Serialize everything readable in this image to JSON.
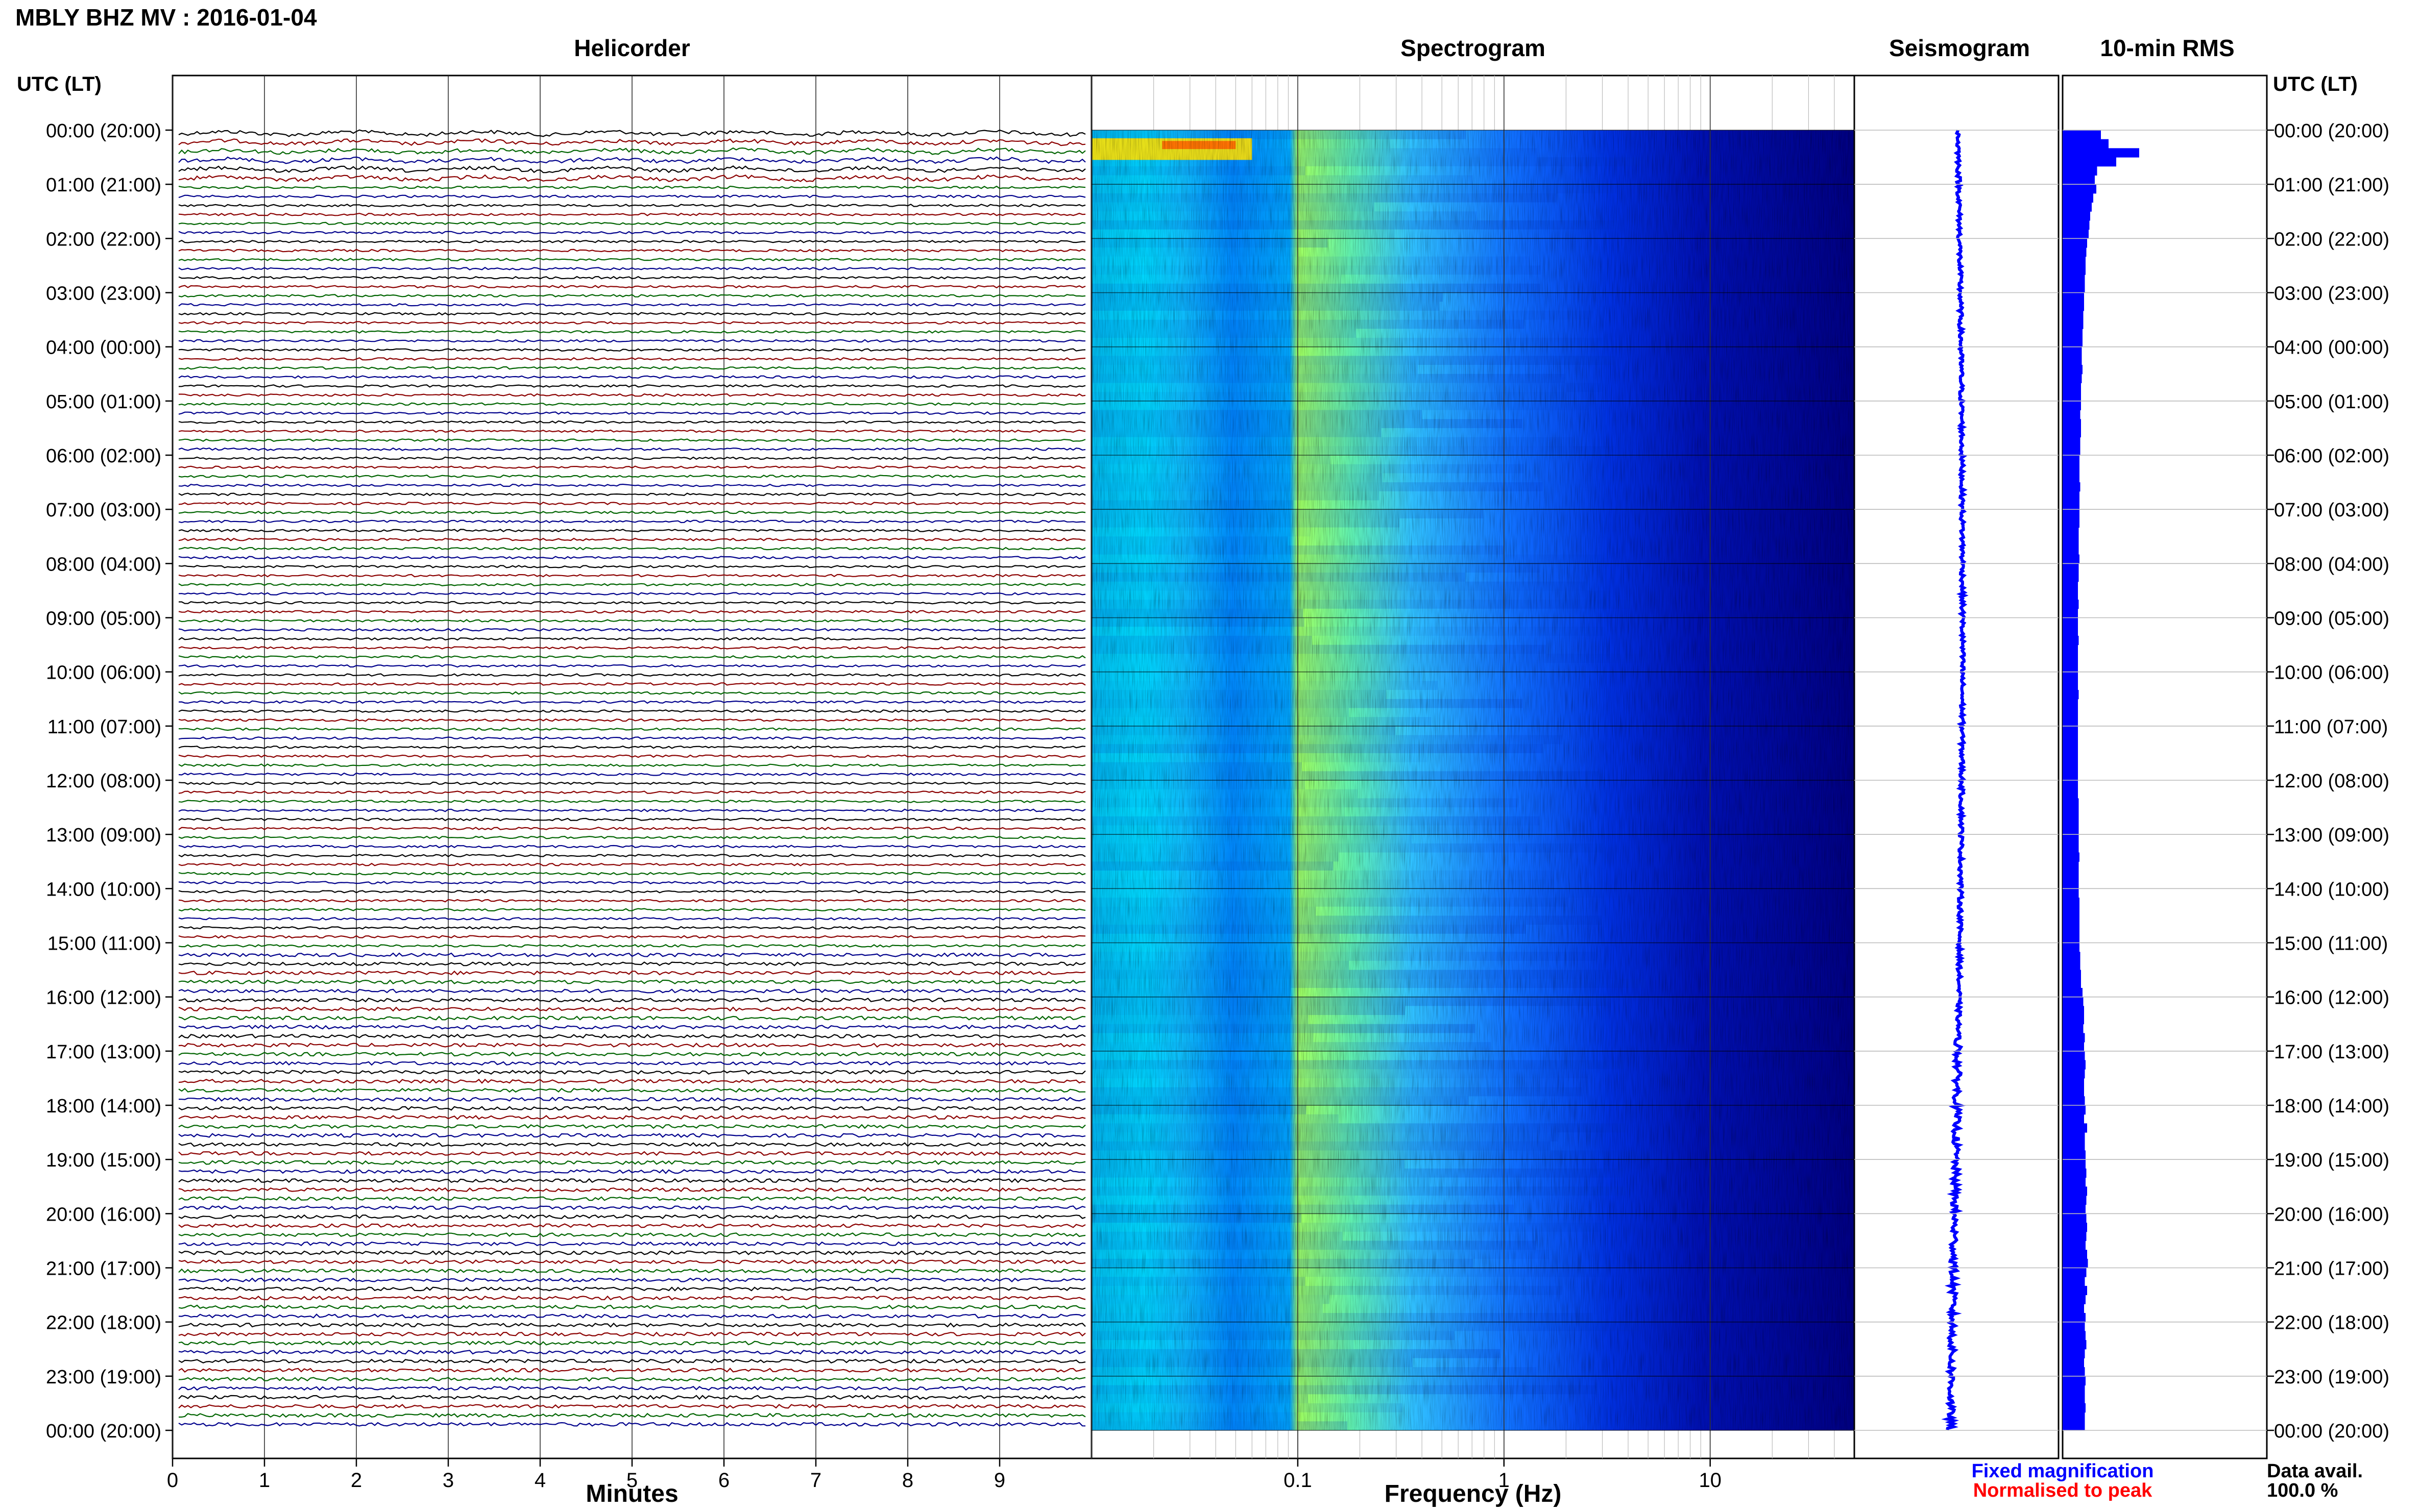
{
  "header": {
    "station_title": "MBLY BHZ MV : 2016-01-04",
    "tz_label_left": "UTC (LT)",
    "tz_label_right": "UTC (LT)"
  },
  "panels": {
    "helicorder_title": "Helicorder",
    "spectrogram_title": "Spectrogram",
    "seismogram_title": "Seismogram",
    "rms_title": "10-min RMS"
  },
  "time_labels": [
    "00:00 (20:00)",
    "01:00 (21:00)",
    "02:00 (22:00)",
    "03:00 (23:00)",
    "04:00 (00:00)",
    "05:00 (01:00)",
    "06:00 (02:00)",
    "07:00 (03:00)",
    "08:00 (04:00)",
    "09:00 (05:00)",
    "10:00 (06:00)",
    "11:00 (07:00)",
    "12:00 (08:00)",
    "13:00 (09:00)",
    "14:00 (10:00)",
    "15:00 (11:00)",
    "16:00 (12:00)",
    "17:00 (13:00)",
    "18:00 (14:00)",
    "19:00 (15:00)",
    "20:00 (16:00)",
    "21:00 (17:00)",
    "22:00 (18:00)",
    "23:00 (19:00)",
    "00:00 (20:00)"
  ],
  "legend": {
    "fixed_magnification": "Fixed magnification",
    "normalised_to_peak": "Normalised to peak",
    "fixed_color": "#0000ff",
    "normalised_color": "#ff0000"
  },
  "data_availability": {
    "label": "Data avail.",
    "value": "100.0 %"
  },
  "colors": {
    "trace_cycle": [
      "#000000",
      "#8b0000",
      "#006400",
      "#00008b"
    ],
    "seismogram": "#0000ff",
    "rms_bar": "#0000ff",
    "colormap": [
      "#00007f",
      "#0000ff",
      "#0080ff",
      "#00ffff",
      "#80ff80",
      "#ffff00",
      "#ff8000",
      "#ff0000"
    ]
  },
  "chart_data": [
    {
      "type": "line",
      "panel": "Helicorder",
      "xlabel": "Minutes",
      "x_ticks": [
        0,
        1,
        2,
        3,
        4,
        5,
        6,
        7,
        8,
        9
      ],
      "xlim": [
        0,
        10
      ],
      "ylim_hours_utc": [
        0,
        24
      ],
      "traces_per_hour": 6,
      "trace_count": 144
    },
    {
      "type": "heatmap",
      "panel": "Spectrogram",
      "xlabel": "Frequency (Hz)",
      "x_scale": "log",
      "x_ticks": [
        0.1,
        1,
        10
      ],
      "x_tick_labels": [
        "0.1",
        "1",
        "10"
      ],
      "xlim": [
        0.01,
        50
      ],
      "ylim_hours_utc": [
        0,
        24
      ]
    },
    {
      "type": "line",
      "panel": "Seismogram",
      "ylim_hours_utc": [
        0,
        24
      ]
    },
    {
      "type": "bar",
      "panel": "10-min RMS",
      "orientation": "horizontal",
      "ylim_hours_utc": [
        0,
        24
      ],
      "bins_per_hour": 6,
      "relative_values": [
        0.5,
        0.6,
        1.0,
        0.7,
        0.45,
        0.42,
        0.44,
        0.4,
        0.38,
        0.36,
        0.35,
        0.34,
        0.32,
        0.31,
        0.3,
        0.3,
        0.29,
        0.29,
        0.28,
        0.28,
        0.27,
        0.27,
        0.26,
        0.26,
        0.25,
        0.25,
        0.26,
        0.25,
        0.24,
        0.24,
        0.24,
        0.23,
        0.24,
        0.24,
        0.23,
        0.23,
        0.22,
        0.22,
        0.22,
        0.23,
        0.22,
        0.22,
        0.22,
        0.22,
        0.21,
        0.21,
        0.21,
        0.22,
        0.21,
        0.21,
        0.2,
        0.2,
        0.21,
        0.2,
        0.2,
        0.2,
        0.21,
        0.2,
        0.2,
        0.2,
        0.2,
        0.2,
        0.21,
        0.2,
        0.2,
        0.2,
        0.2,
        0.2,
        0.2,
        0.2,
        0.2,
        0.2,
        0.2,
        0.2,
        0.21,
        0.21,
        0.21,
        0.21,
        0.21,
        0.21,
        0.22,
        0.21,
        0.21,
        0.21,
        0.21,
        0.22,
        0.22,
        0.22,
        0.22,
        0.22,
        0.22,
        0.23,
        0.23,
        0.24,
        0.24,
        0.26,
        0.27,
        0.28,
        0.28,
        0.27,
        0.29,
        0.28,
        0.29,
        0.3,
        0.29,
        0.28,
        0.28,
        0.29,
        0.3,
        0.28,
        0.32,
        0.29,
        0.29,
        0.3,
        0.3,
        0.31,
        0.3,
        0.32,
        0.31,
        0.3,
        0.31,
        0.32,
        0.31,
        0.3,
        0.32,
        0.33,
        0.31,
        0.29,
        0.32,
        0.3,
        0.28,
        0.3,
        0.29,
        0.3,
        0.31,
        0.29,
        0.28,
        0.29,
        0.3,
        0.29,
        0.29,
        0.3,
        0.29,
        0.29
      ]
    }
  ]
}
